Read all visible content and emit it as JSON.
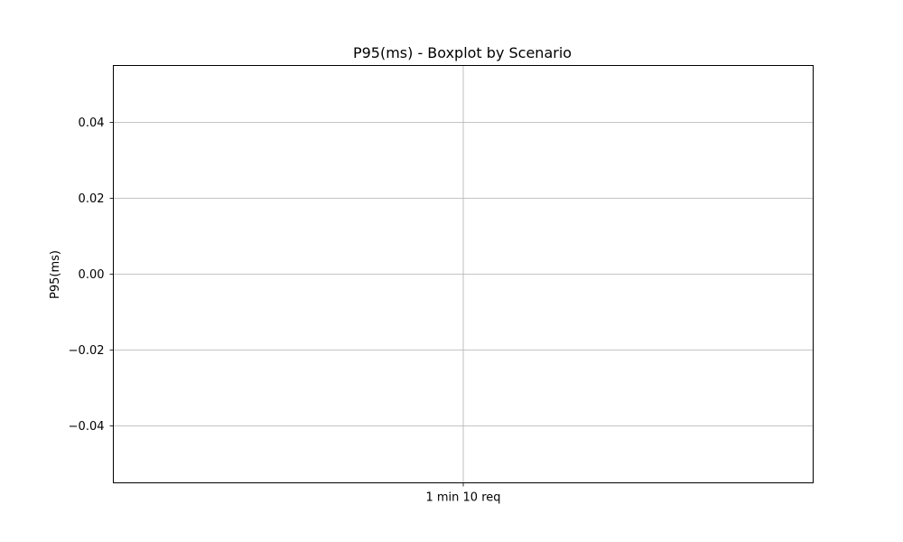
{
  "chart_data": {
    "type": "boxplot",
    "title": "P95(ms) - Boxplot by Scenario",
    "xlabel": "",
    "ylabel": "P95(ms)",
    "categories": [
      "1 min 10 req"
    ],
    "series": [
      {
        "values": []
      }
    ],
    "ylim": [
      -0.055,
      0.055
    ],
    "yticks": [
      -0.04,
      -0.02,
      0.0,
      0.02,
      0.04
    ],
    "ytick_labels": [
      "−0.04",
      "−0.02",
      "0.00",
      "0.02",
      "0.04"
    ],
    "grid": true,
    "legend": "none"
  }
}
